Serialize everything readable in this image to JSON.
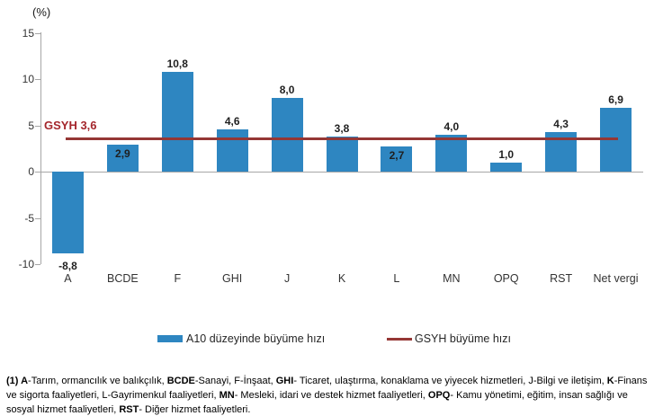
{
  "chart_data": {
    "type": "bar",
    "unit_label": "(%)",
    "categories": [
      "A",
      "BCDE",
      "F",
      "GHI",
      "J",
      "K",
      "L",
      "MN",
      "OPQ",
      "RST",
      "Net vergi"
    ],
    "values": [
      -8.8,
      2.9,
      10.8,
      4.6,
      8.0,
      3.8,
      2.7,
      4.0,
      1.0,
      4.3,
      6.9
    ],
    "value_labels": [
      "-8,8",
      "2,9",
      "10,8",
      "4,6",
      "8,0",
      "3,8",
      "2,7",
      "4,0",
      "1,0",
      "4,3",
      "6,9"
    ],
    "yticks": [
      15,
      10,
      5,
      0,
      -5,
      -10
    ],
    "ytick_labels": [
      "15",
      "10",
      "5",
      "0",
      "-5",
      "-10"
    ],
    "ylim": [
      -10,
      15
    ],
    "grid": false,
    "reference_line": {
      "value": 3.6,
      "label": "GSYH 3,6"
    },
    "legend_position": "bottom",
    "legend": [
      {
        "label": "A10 düzeyinde büyüme hızı",
        "type": "bar",
        "color": "#2E86C1"
      },
      {
        "label": "GSYH büyüme hızı",
        "type": "line",
        "color": "#953735"
      }
    ],
    "colors": {
      "bar": "#2E86C1",
      "reference_line": "#953735",
      "reference_label": "#A4262C",
      "axis": "#a6a6a6"
    }
  },
  "footnote": {
    "segments": [
      {
        "text": "(1) A",
        "bold": true
      },
      {
        "text": "-Tarım, ormancılık ve balıkçılık, ",
        "bold": false
      },
      {
        "text": "BCDE",
        "bold": true
      },
      {
        "text": "-Sanayi, F-İnşaat, ",
        "bold": false
      },
      {
        "text": "GHI",
        "bold": true
      },
      {
        "text": "- Ticaret, ulaştırma, konaklama ve yiyecek hizmetleri, J-Bilgi ve iletişim, ",
        "bold": false
      },
      {
        "text": "K",
        "bold": true
      },
      {
        "text": "-Finans ve sigorta faaliyetleri, L-Gayrimenkul faaliyetleri, ",
        "bold": false
      },
      {
        "text": "MN",
        "bold": true
      },
      {
        "text": "- Mesleki, idari ve destek hizmet faaliyetleri, ",
        "bold": false
      },
      {
        "text": "OPQ",
        "bold": true
      },
      {
        "text": "- Kamu yönetimi, eğitim, insan sağlığı ve sosyal hizmet faaliyetleri, ",
        "bold": false
      },
      {
        "text": "RST",
        "bold": true
      },
      {
        "text": "- Diğer hizmet faaliyetleri.",
        "bold": false
      }
    ]
  }
}
